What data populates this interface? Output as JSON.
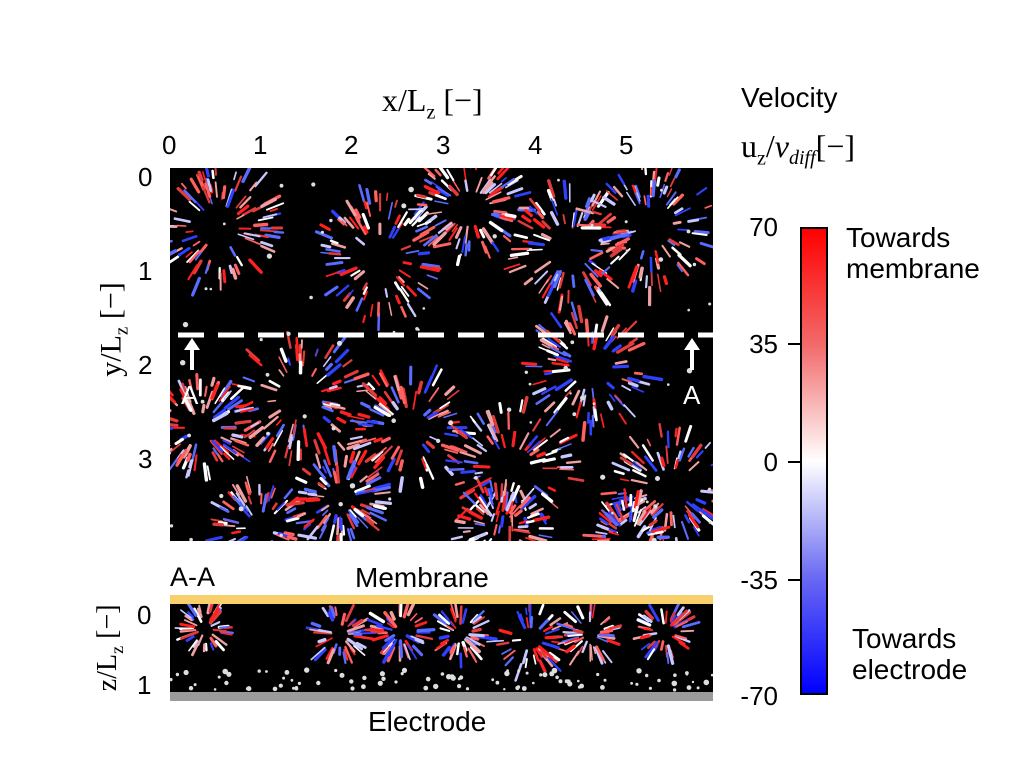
{
  "top_axis": {
    "label_var": "x/L",
    "label_sub": "z",
    "label_unit": "[−]",
    "ticks": [
      "0",
      "1",
      "2",
      "3",
      "4",
      "5"
    ]
  },
  "left_axis": {
    "label_var": "y/L",
    "label_sub": "z",
    "label_unit": "[−]",
    "ticks": [
      "0",
      "1",
      "2",
      "3"
    ]
  },
  "section": {
    "marker_left": "A",
    "marker_right": "A",
    "name": "A-A"
  },
  "bottom_axis": {
    "label_var": "z/L",
    "label_sub": "z",
    "label_unit": "[−]",
    "ticks": [
      "0",
      "1"
    ]
  },
  "labels": {
    "membrane": "Membrane",
    "electrode": "Electrode"
  },
  "colorbar": {
    "title": "Velocity",
    "quantity_var": "u",
    "quantity_sub": "z",
    "quantity_denom": "v",
    "quantity_denom_sub": "diff",
    "quantity_unit": "[−]",
    "ticks": [
      "70",
      "35",
      "0",
      "-35",
      "-70"
    ],
    "top_label_line1": "Towards",
    "top_label_line2": "membrane",
    "bottom_label_line1": "Towards",
    "bottom_label_line2": "electrode",
    "colors": {
      "max": "#ff0000",
      "mid": "#ffffff",
      "min": "#0000ff"
    }
  },
  "colors": {
    "panel_background": "#000000",
    "membrane": "#f7cf6b",
    "electrode": "#9b9b9b",
    "section_line": "#ffffff"
  }
}
